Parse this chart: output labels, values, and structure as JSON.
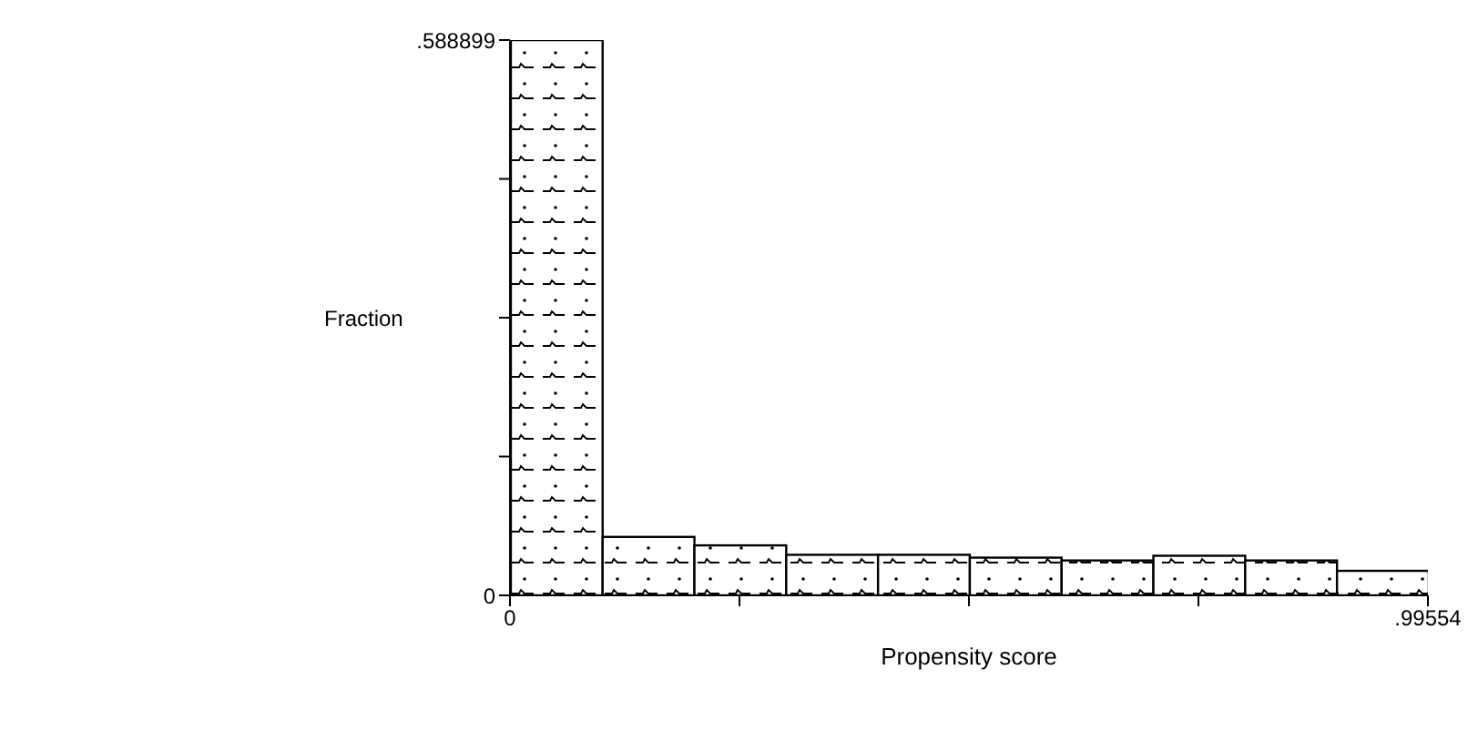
{
  "chart_data": {
    "type": "histogram",
    "xlabel": "Propensity score",
    "ylabel": "Fraction",
    "bins": [
      0,
      0.099554,
      0.199108,
      0.298662,
      0.398216,
      0.49777,
      0.597324,
      0.696878,
      0.796432,
      0.895986,
      0.99554
    ],
    "values": [
      0.588899,
      0.062,
      0.053,
      0.043,
      0.043,
      0.04,
      0.037,
      0.042,
      0.037,
      0.026
    ],
    "color": "#000000",
    "xlim": [
      0,
      0.99554
    ],
    "xticks": [
      0,
      {
        "value": 0.248885,
        "label": null
      },
      {
        "value": 0.49777,
        "label": null
      },
      {
        "value": 0.746655,
        "label": null
      },
      {
        "value": 0.99554,
        "label": ".99554"
      }
    ],
    "ylim": [
      0,
      0.588899
    ],
    "yticks": [
      0,
      {
        "value": 0.147225,
        "label": null
      },
      {
        "value": 0.29445,
        "label": null
      },
      {
        "value": 0.441674,
        "label": null
      },
      {
        "value": 0.588899,
        "label": ".588899"
      }
    ],
    "grid": false,
    "legend": false
  }
}
